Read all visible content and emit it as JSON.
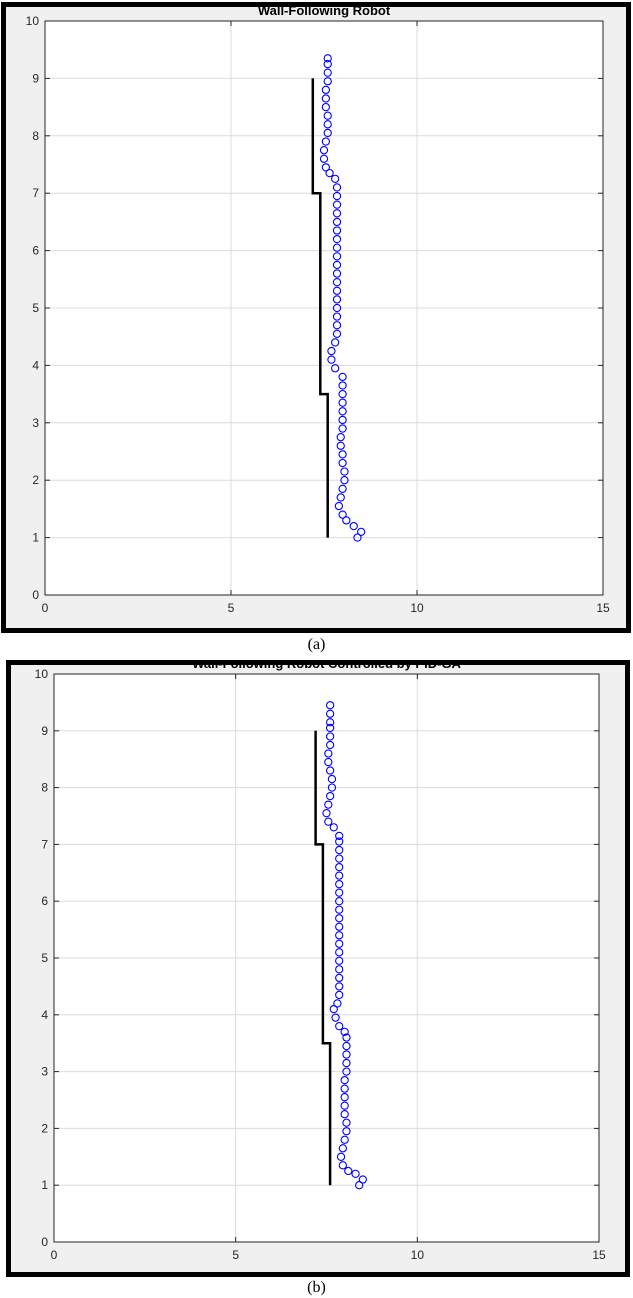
{
  "chart_data": [
    {
      "type": "line",
      "title": "Wall-Following Robot",
      "caption": "(a)",
      "xlim": [
        0,
        15
      ],
      "ylim": [
        0,
        10
      ],
      "xticks": [
        0,
        5,
        10,
        15
      ],
      "yticks": [
        0,
        1,
        2,
        3,
        4,
        5,
        6,
        7,
        8,
        9,
        10
      ],
      "grid": true,
      "series": [
        {
          "style": "line",
          "color": "#000000",
          "points": [
            [
              7.6,
              1.0
            ],
            [
              7.6,
              3.5
            ],
            [
              7.4,
              3.5
            ],
            [
              7.4,
              7.0
            ],
            [
              7.2,
              7.0
            ],
            [
              7.2,
              9.0
            ]
          ]
        },
        {
          "style": "marker-circle",
          "color": "#0000ff",
          "points": [
            [
              8.4,
              1.0
            ],
            [
              8.5,
              1.1
            ],
            [
              8.3,
              1.2
            ],
            [
              8.1,
              1.3
            ],
            [
              8.0,
              1.4
            ],
            [
              7.9,
              1.55
            ],
            [
              7.95,
              1.7
            ],
            [
              8.0,
              1.85
            ],
            [
              8.05,
              2.0
            ],
            [
              8.05,
              2.15
            ],
            [
              8.0,
              2.3
            ],
            [
              8.0,
              2.45
            ],
            [
              7.95,
              2.6
            ],
            [
              7.95,
              2.75
            ],
            [
              8.0,
              2.9
            ],
            [
              8.0,
              3.05
            ],
            [
              8.0,
              3.2
            ],
            [
              8.0,
              3.35
            ],
            [
              8.0,
              3.5
            ],
            [
              8.0,
              3.65
            ],
            [
              8.0,
              3.8
            ],
            [
              7.8,
              3.95
            ],
            [
              7.7,
              4.1
            ],
            [
              7.7,
              4.25
            ],
            [
              7.8,
              4.4
            ],
            [
              7.85,
              4.55
            ],
            [
              7.85,
              4.7
            ],
            [
              7.85,
              4.85
            ],
            [
              7.85,
              5.0
            ],
            [
              7.85,
              5.15
            ],
            [
              7.85,
              5.3
            ],
            [
              7.85,
              5.45
            ],
            [
              7.85,
              5.6
            ],
            [
              7.85,
              5.75
            ],
            [
              7.85,
              5.9
            ],
            [
              7.85,
              6.05
            ],
            [
              7.85,
              6.2
            ],
            [
              7.85,
              6.35
            ],
            [
              7.85,
              6.5
            ],
            [
              7.85,
              6.65
            ],
            [
              7.85,
              6.8
            ],
            [
              7.85,
              6.95
            ],
            [
              7.85,
              7.1
            ],
            [
              7.8,
              7.25
            ],
            [
              7.65,
              7.35
            ],
            [
              7.55,
              7.45
            ],
            [
              7.5,
              7.6
            ],
            [
              7.5,
              7.75
            ],
            [
              7.55,
              7.9
            ],
            [
              7.6,
              8.05
            ],
            [
              7.6,
              8.2
            ],
            [
              7.6,
              8.35
            ],
            [
              7.55,
              8.5
            ],
            [
              7.55,
              8.65
            ],
            [
              7.55,
              8.8
            ],
            [
              7.6,
              8.95
            ],
            [
              7.6,
              9.1
            ],
            [
              7.6,
              9.25
            ],
            [
              7.6,
              9.35
            ]
          ]
        }
      ]
    },
    {
      "type": "line",
      "title": "Wall-Following Robot Controlled by PID-GA",
      "caption": "(b)",
      "xlim": [
        0,
        15
      ],
      "ylim": [
        0,
        10
      ],
      "xticks": [
        0,
        5,
        10,
        15
      ],
      "yticks": [
        0,
        1,
        2,
        3,
        4,
        5,
        6,
        7,
        8,
        9,
        10
      ],
      "grid": true,
      "series": [
        {
          "style": "line",
          "color": "#000000",
          "points": [
            [
              7.6,
              1.0
            ],
            [
              7.6,
              3.5
            ],
            [
              7.4,
              3.5
            ],
            [
              7.4,
              7.0
            ],
            [
              7.2,
              7.0
            ],
            [
              7.2,
              9.0
            ]
          ]
        },
        {
          "style": "marker-circle",
          "color": "#0000ff",
          "points": [
            [
              8.4,
              1.0
            ],
            [
              8.5,
              1.1
            ],
            [
              8.3,
              1.2
            ],
            [
              8.1,
              1.25
            ],
            [
              7.95,
              1.35
            ],
            [
              7.9,
              1.5
            ],
            [
              7.95,
              1.65
            ],
            [
              8.0,
              1.8
            ],
            [
              8.05,
              1.95
            ],
            [
              8.05,
              2.1
            ],
            [
              8.0,
              2.25
            ],
            [
              8.0,
              2.4
            ],
            [
              8.0,
              2.55
            ],
            [
              8.0,
              2.7
            ],
            [
              8.0,
              2.85
            ],
            [
              8.05,
              3.0
            ],
            [
              8.05,
              3.15
            ],
            [
              8.05,
              3.3
            ],
            [
              8.05,
              3.45
            ],
            [
              8.05,
              3.6
            ],
            [
              8.0,
              3.7
            ],
            [
              7.85,
              3.8
            ],
            [
              7.75,
              3.95
            ],
            [
              7.7,
              4.1
            ],
            [
              7.8,
              4.2
            ],
            [
              7.85,
              4.35
            ],
            [
              7.85,
              4.5
            ],
            [
              7.85,
              4.65
            ],
            [
              7.85,
              4.8
            ],
            [
              7.85,
              4.95
            ],
            [
              7.85,
              5.1
            ],
            [
              7.85,
              5.25
            ],
            [
              7.85,
              5.4
            ],
            [
              7.85,
              5.55
            ],
            [
              7.85,
              5.7
            ],
            [
              7.85,
              5.85
            ],
            [
              7.85,
              6.0
            ],
            [
              7.85,
              6.15
            ],
            [
              7.85,
              6.3
            ],
            [
              7.85,
              6.45
            ],
            [
              7.85,
              6.6
            ],
            [
              7.85,
              6.75
            ],
            [
              7.85,
              6.9
            ],
            [
              7.85,
              7.05
            ],
            [
              7.85,
              7.15
            ],
            [
              7.7,
              7.3
            ],
            [
              7.55,
              7.4
            ],
            [
              7.5,
              7.55
            ],
            [
              7.55,
              7.7
            ],
            [
              7.6,
              7.85
            ],
            [
              7.65,
              8.0
            ],
            [
              7.65,
              8.15
            ],
            [
              7.6,
              8.3
            ],
            [
              7.55,
              8.45
            ],
            [
              7.55,
              8.6
            ],
            [
              7.6,
              8.75
            ],
            [
              7.6,
              8.9
            ],
            [
              7.6,
              9.05
            ],
            [
              7.6,
              9.15
            ],
            [
              7.6,
              9.3
            ],
            [
              7.6,
              9.45
            ]
          ]
        }
      ]
    }
  ]
}
